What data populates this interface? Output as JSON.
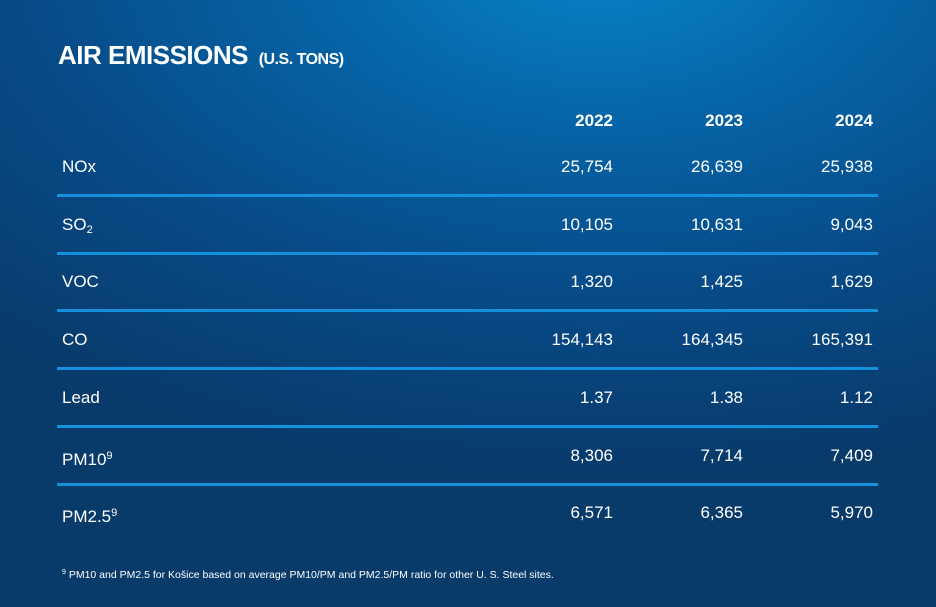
{
  "title": "AIR EMISSIONS",
  "unit": "(U.S. TONS)",
  "columns": [
    "2022",
    "2023",
    "2024"
  ],
  "rows": [
    {
      "label": "NOx",
      "sub": "",
      "sup": "",
      "values": [
        "25,754",
        "26,639",
        "25,938"
      ]
    },
    {
      "label": "SO",
      "sub": "2",
      "sup": "",
      "values": [
        "10,105",
        "10,631",
        "9,043"
      ]
    },
    {
      "label": "VOC",
      "sub": "",
      "sup": "",
      "values": [
        "1,320",
        "1,425",
        "1,629"
      ]
    },
    {
      "label": "CO",
      "sub": "",
      "sup": "",
      "values": [
        "154,143",
        "164,345",
        "165,391"
      ]
    },
    {
      "label": "Lead",
      "sub": "",
      "sup": "",
      "values": [
        "1.37",
        "1.38",
        "1.12"
      ]
    },
    {
      "label": "PM10",
      "sub": "",
      "sup": "9",
      "values": [
        "8,306",
        "7,714",
        "7,409"
      ]
    },
    {
      "label": "PM2.5",
      "sub": "",
      "sup": "9",
      "values": [
        "6,571",
        "6,365",
        "5,970"
      ]
    }
  ],
  "footnote": {
    "mark": "9",
    "text": "PM10 and PM2.5 for Košice based on average PM10/PM and PM2.5/PM ratio for other U. S. Steel sites."
  }
}
